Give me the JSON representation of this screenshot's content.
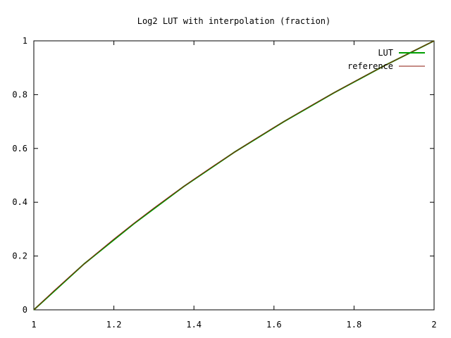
{
  "chart_data": {
    "type": "line",
    "title": "Log2 LUT with interpolation (fraction)",
    "xlabel": "",
    "ylabel": "",
    "xlim": [
      1,
      2
    ],
    "ylim": [
      0,
      1
    ],
    "x_ticks": [
      1,
      1.2,
      1.4,
      1.6,
      1.8,
      2
    ],
    "x_tick_labels": [
      "1",
      "1.2",
      "1.4",
      "1.6",
      "1.8",
      "2"
    ],
    "y_ticks": [
      0,
      0.2,
      0.4,
      0.6,
      0.8,
      1
    ],
    "y_tick_labels": [
      "0",
      "0.2",
      "0.4",
      "0.6",
      "0.8",
      "1"
    ],
    "grid": false,
    "legend_position": "top-right",
    "series": [
      {
        "name": "LUT",
        "color": "#00a000",
        "x": [
          1.0,
          1.125,
          1.25,
          1.375,
          1.5,
          1.625,
          1.75,
          1.875,
          2.0
        ],
        "y": [
          0.0,
          0.17,
          0.32,
          0.459,
          0.585,
          0.7,
          0.807,
          0.907,
          1.0
        ]
      },
      {
        "name": "reference",
        "color": "#8b1a0e",
        "x": [
          1.0,
          1.05,
          1.1,
          1.15,
          1.2,
          1.25,
          1.3,
          1.35,
          1.4,
          1.45,
          1.5,
          1.55,
          1.6,
          1.65,
          1.7,
          1.75,
          1.8,
          1.85,
          1.9,
          1.95,
          2.0
        ],
        "y": [
          0.0,
          0.0704,
          0.1375,
          0.2016,
          0.263,
          0.3219,
          0.3785,
          0.433,
          0.4854,
          0.5361,
          0.585,
          0.6323,
          0.6781,
          0.7225,
          0.7655,
          0.8074,
          0.848,
          0.8875,
          0.926,
          0.9635,
          1.0
        ]
      }
    ]
  }
}
